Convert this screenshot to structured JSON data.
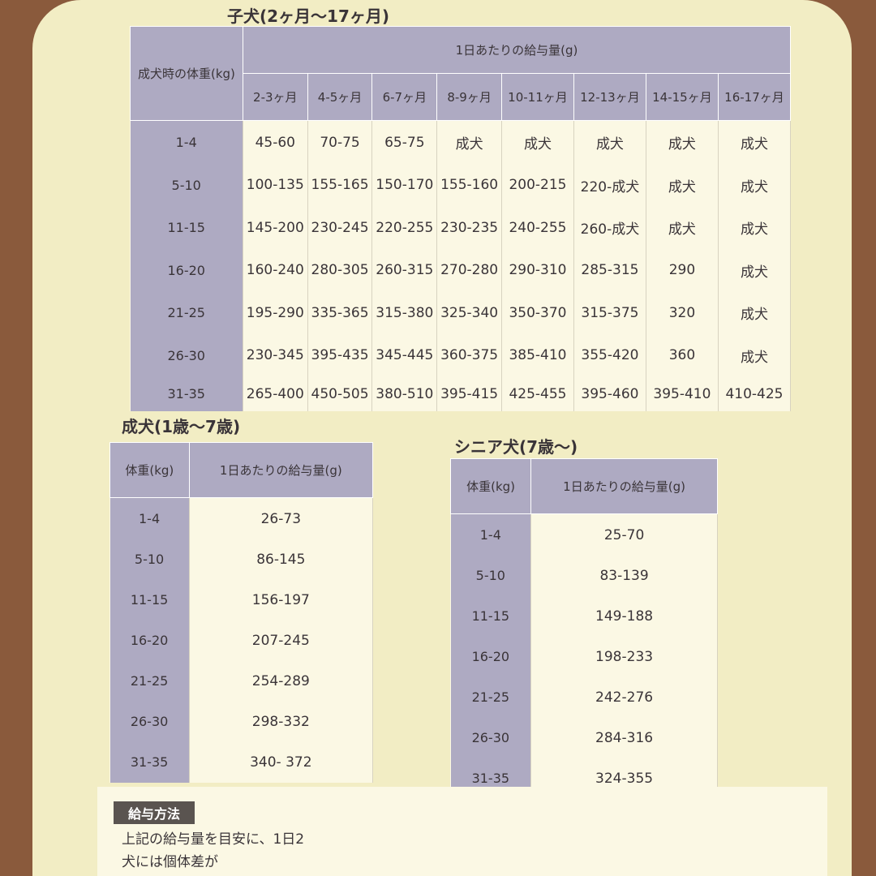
{
  "puppy": {
    "title": "子犬(2ヶ月〜17ヶ月)",
    "weight_header": "成犬時の体重(kg)",
    "amount_header": "1日あたりの給与量(g)",
    "months": [
      "2-3ヶ月",
      "4-5ヶ月",
      "6-7ヶ月",
      "8-9ヶ月",
      "10-11ヶ月",
      "12-13ヶ月",
      "14-15ヶ月",
      "16-17ヶ月"
    ],
    "rows": [
      {
        "weight": "1-4",
        "values": [
          "45-60",
          "70-75",
          "65-75",
          "成犬",
          "成犬",
          "成犬",
          "成犬",
          "成犬"
        ]
      },
      {
        "weight": "5-10",
        "values": [
          "100-135",
          "155-165",
          "150-170",
          "155-160",
          "200-215",
          "220-成犬",
          "成犬",
          "成犬"
        ]
      },
      {
        "weight": "11-15",
        "values": [
          "145-200",
          "230-245",
          "220-255",
          "230-235",
          "240-255",
          "260-成犬",
          "成犬",
          "成犬"
        ]
      },
      {
        "weight": "16-20",
        "values": [
          "160-240",
          "280-305",
          "260-315",
          "270-280",
          "290-310",
          "285-315",
          "290",
          "成犬"
        ]
      },
      {
        "weight": "21-25",
        "values": [
          "195-290",
          "335-365",
          "315-380",
          "325-340",
          "350-370",
          "315-375",
          "320",
          "成犬"
        ]
      },
      {
        "weight": "26-30",
        "values": [
          "230-345",
          "395-435",
          "345-445",
          "360-375",
          "385-410",
          "355-420",
          "360",
          "成犬"
        ]
      },
      {
        "weight": "31-35",
        "values": [
          "265-400",
          "450-505",
          "380-510",
          "395-415",
          "425-455",
          "395-460",
          "395-410",
          "410-425"
        ]
      }
    ]
  },
  "adult": {
    "title": "成犬(1歳〜7歳)",
    "weight_header": "体重(kg)",
    "amount_header": "1日あたりの給与量(g)",
    "rows": [
      {
        "weight": "1-4",
        "amount": "26-73"
      },
      {
        "weight": "5-10",
        "amount": "86-145"
      },
      {
        "weight": "11-15",
        "amount": "156-197"
      },
      {
        "weight": "16-20",
        "amount": "207-245"
      },
      {
        "weight": "21-25",
        "amount": "254-289"
      },
      {
        "weight": "26-30",
        "amount": "298-332"
      },
      {
        "weight": "31-35",
        "amount": "340- 372"
      }
    ]
  },
  "senior": {
    "title": "シニア犬(7歳〜)",
    "weight_header": "体重(kg)",
    "amount_header": "1日あたりの給与量(g)",
    "rows": [
      {
        "weight": "1-4",
        "amount": "25-70"
      },
      {
        "weight": "5-10",
        "amount": "83-139"
      },
      {
        "weight": "11-15",
        "amount": "149-188"
      },
      {
        "weight": "16-20",
        "amount": "198-233"
      },
      {
        "weight": "21-25",
        "amount": "242-276"
      },
      {
        "weight": "26-30",
        "amount": "284-316"
      },
      {
        "weight": "31-35",
        "amount": "324-355"
      }
    ]
  },
  "feeding": {
    "title": "給与方法",
    "lines": [
      "上記の給与量を目安に、1日2",
      "犬には個体差が"
    ]
  }
}
